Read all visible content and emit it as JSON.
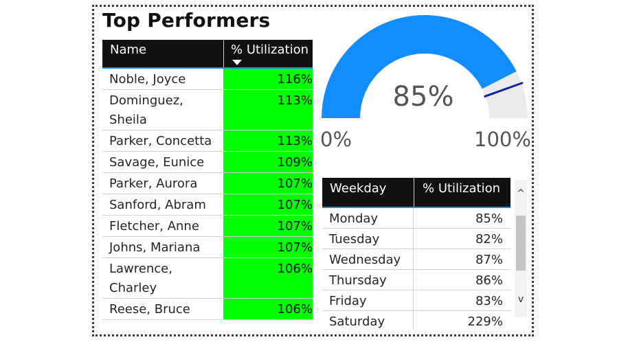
{
  "title": "Top Performers",
  "top_performers": {
    "headers": {
      "name": "Name",
      "utilization": "% Utilization"
    },
    "sort": "descending",
    "highlight_color": "#00ff00",
    "rows": [
      {
        "name": "Noble, Joyce",
        "value": "116%"
      },
      {
        "name": "Dominguez, Sheila",
        "value": "113%"
      },
      {
        "name": "Parker, Concetta",
        "value": "113%"
      },
      {
        "name": "Savage, Eunice",
        "value": "109%"
      },
      {
        "name": "Parker, Aurora",
        "value": "107%"
      },
      {
        "name": "Sanford, Abram",
        "value": "107%"
      },
      {
        "name": "Fletcher, Anne",
        "value": "107%"
      },
      {
        "name": "Johns, Mariana",
        "value": "107%"
      },
      {
        "name": "Lawrence, Charley",
        "value": "106%"
      },
      {
        "name": "Reese, Bruce",
        "value": "106%"
      }
    ]
  },
  "gauge": {
    "value_label": "85%",
    "min_label": "0%",
    "max_label": "100%",
    "value": 85,
    "min": 0,
    "max": 100,
    "target": 89,
    "fill_color": "#118dff",
    "track_color": "#ebebeb",
    "target_color": "#12239e"
  },
  "weekday_table": {
    "headers": {
      "weekday": "Weekday",
      "utilization": "% Utilization"
    },
    "rows": [
      {
        "weekday": "Monday",
        "value": "85%"
      },
      {
        "weekday": "Tuesday",
        "value": "82%"
      },
      {
        "weekday": "Wednesday",
        "value": "87%"
      },
      {
        "weekday": "Thursday",
        "value": "86%"
      },
      {
        "weekday": "Friday",
        "value": "83%"
      },
      {
        "weekday": "Saturday",
        "value": "229%"
      }
    ]
  },
  "scrollbar": {
    "up_icon": "chevron-up-icon",
    "down_icon": "chevron-down-icon",
    "up_glyph": "^",
    "down_glyph": "v"
  }
}
